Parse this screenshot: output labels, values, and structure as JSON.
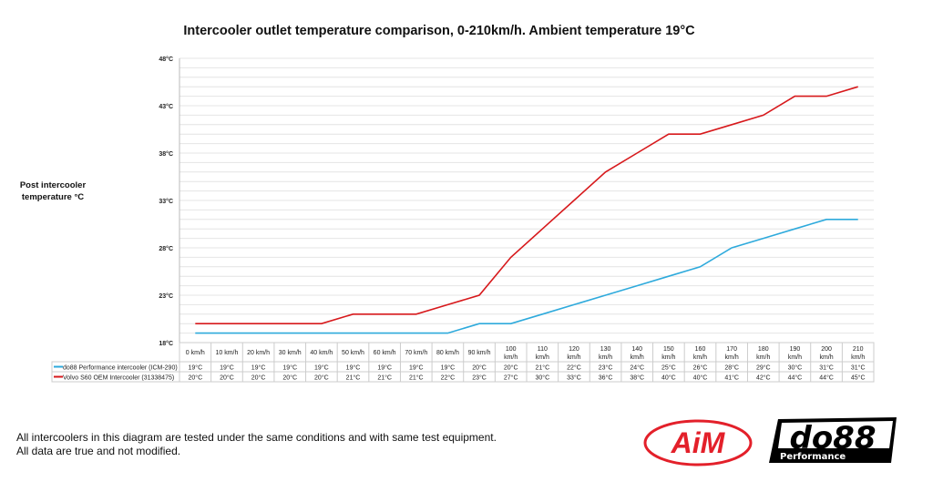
{
  "chart_data": {
    "type": "line",
    "title": "Intercooler outlet temperature comparison, 0-210km/h. Ambient temperature 19°C",
    "ylabel": "Post intercooler temperature °C",
    "xlabel": "",
    "ylim": [
      18,
      48
    ],
    "yticks": [
      "18°C",
      "23°C",
      "28°C",
      "33°C",
      "38°C",
      "43°C",
      "48°C"
    ],
    "ytick_values": [
      18,
      23,
      28,
      33,
      38,
      43,
      48
    ],
    "grid": true,
    "legend": "table-bottom",
    "categories": [
      "0 km/h",
      "10 km/h",
      "20 km/h",
      "30 km/h",
      "40 km/h",
      "50 km/h",
      "60 km/h",
      "70 km/h",
      "80 km/h",
      "90 km/h",
      "100 km/h",
      "110 km/h",
      "120 km/h",
      "130 km/h",
      "140 km/h",
      "150 km/h",
      "160 km/h",
      "170 km/h",
      "180 km/h",
      "190 km/h",
      "200 km/h",
      "210 km/h"
    ],
    "series": [
      {
        "name": "do88 Performance intercooler (ICM-290)",
        "color": "#2eaadc",
        "values": [
          19,
          19,
          19,
          19,
          19,
          19,
          19,
          19,
          19,
          20,
          20,
          21,
          22,
          23,
          24,
          25,
          26,
          28,
          29,
          30,
          31,
          31
        ]
      },
      {
        "name": "Volvo S60 OEM Intercooler (31338475)",
        "color": "#d7191c",
        "values": [
          20,
          20,
          20,
          20,
          20,
          21,
          21,
          21,
          22,
          23,
          27,
          30,
          33,
          36,
          38,
          40,
          40,
          41,
          42,
          44,
          44,
          45
        ]
      }
    ],
    "unit": "°C"
  },
  "footnote": [
    "All intercoolers in this diagram are tested under the same conditions and with same test equipment.",
    "All data are true and not modified."
  ],
  "logos": {
    "aim": "AiM",
    "do88": "do88",
    "do88_sub": "Performance"
  }
}
